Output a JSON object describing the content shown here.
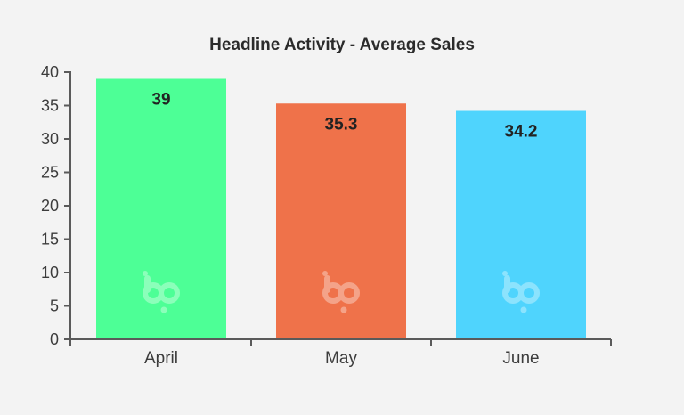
{
  "chart_data": {
    "type": "bar",
    "title": "Headline Activity - Average Sales",
    "xlabel": "",
    "ylabel": "",
    "categories": [
      "April",
      "May",
      "June"
    ],
    "values": [
      39,
      35.3,
      34.2
    ],
    "value_labels": [
      "39",
      "35.3",
      "34.2"
    ],
    "colors": [
      "#4dff96",
      "#ef724a",
      "#4fd4fd"
    ],
    "ylim": [
      0,
      40
    ],
    "yticks": [
      0,
      5,
      10,
      15,
      20,
      25,
      30,
      35,
      40
    ],
    "grid": false,
    "legend": "none"
  },
  "watermark": {
    "text": "bp",
    "color": "#ffffff"
  }
}
